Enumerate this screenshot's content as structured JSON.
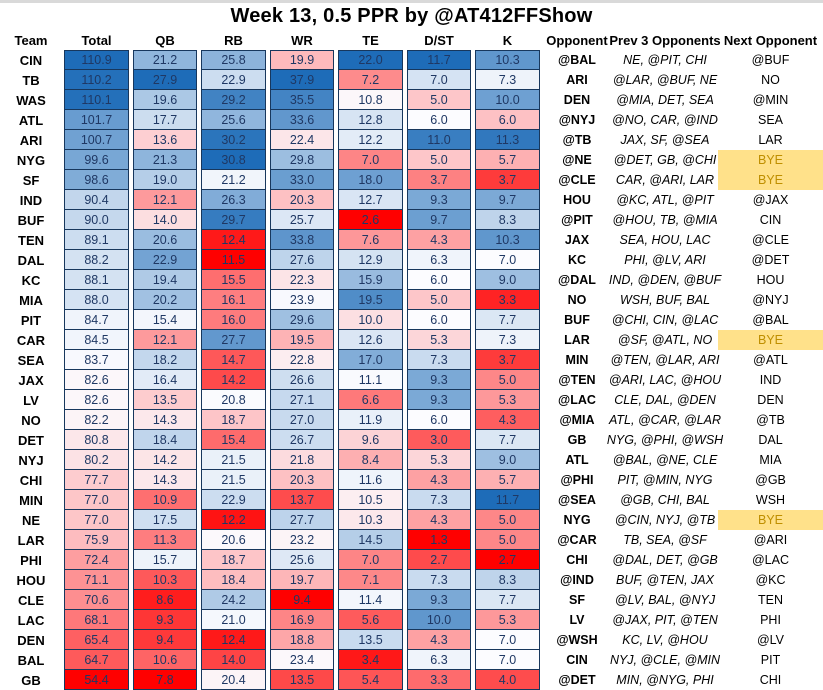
{
  "chart_data": {
    "type": "table",
    "subtype": "heatmap",
    "title": "Week 13, 0.5 PPR by @AT412FFShow",
    "columns": [
      "Team",
      "Total",
      "QB",
      "RB",
      "WR",
      "TE",
      "D/ST",
      "K",
      "Opponent",
      "Prev 3 Opponents",
      "Next Opponent"
    ],
    "numeric_columns": [
      "Total",
      "QB",
      "RB",
      "WR",
      "TE",
      "D/ST",
      "K"
    ],
    "color_scale": {
      "low": "#ff0000",
      "mid": "#fcfcff",
      "high": "#1e6cb8",
      "midpoint": "median-per-column",
      "cell_text": "#1f3864",
      "grid_line": "#17375d",
      "bye_bg": "#ffe18a",
      "bye_text": "#bf8f00"
    },
    "rows": [
      {
        "team": "CIN",
        "vals": [
          110.9,
          21.2,
          25.8,
          19.9,
          22.0,
          11.7,
          10.3
        ],
        "opp": "@BAL",
        "prev3": "NE, @PIT, CHI",
        "next": "@BUF",
        "next_bye": false
      },
      {
        "team": "TB",
        "vals": [
          110.2,
          27.9,
          22.9,
          37.9,
          7.2,
          7.0,
          7.3
        ],
        "opp": "ARI",
        "prev3": "@LAR, @BUF, NE",
        "next": "NO",
        "next_bye": false
      },
      {
        "team": "WAS",
        "vals": [
          110.1,
          19.6,
          29.2,
          35.5,
          10.8,
          5.0,
          10.0
        ],
        "opp": "DEN",
        "prev3": "@MIA, DET, SEA",
        "next": "@MIN",
        "next_bye": false
      },
      {
        "team": "ATL",
        "vals": [
          101.7,
          17.7,
          25.6,
          33.6,
          12.8,
          6.0,
          6.0
        ],
        "opp": "@NYJ",
        "prev3": "@NO, CAR, @IND",
        "next": "SEA",
        "next_bye": false
      },
      {
        "team": "ARI",
        "vals": [
          100.7,
          13.6,
          30.2,
          22.4,
          12.2,
          11.0,
          11.3
        ],
        "opp": "@TB",
        "prev3": "JAX, SF, @SEA",
        "next": "LAR",
        "next_bye": false
      },
      {
        "team": "NYG",
        "vals": [
          99.6,
          21.3,
          30.8,
          29.8,
          7.0,
          5.0,
          5.7
        ],
        "opp": "@NE",
        "prev3": "@DET, GB, @CHI",
        "next": "BYE",
        "next_bye": true
      },
      {
        "team": "SF",
        "vals": [
          98.6,
          19.0,
          21.2,
          33.0,
          18.0,
          3.7,
          3.7
        ],
        "opp": "@CLE",
        "prev3": "CAR, @ARI, LAR",
        "next": "BYE",
        "next_bye": true
      },
      {
        "team": "IND",
        "vals": [
          90.4,
          12.1,
          26.3,
          20.3,
          12.7,
          9.3,
          9.7
        ],
        "opp": "HOU",
        "prev3": "@KC, ATL, @PIT",
        "next": "@JAX",
        "next_bye": false
      },
      {
        "team": "BUF",
        "vals": [
          90.0,
          14.0,
          29.7,
          25.7,
          2.6,
          9.7,
          8.3
        ],
        "opp": "@PIT",
        "prev3": "@HOU, TB, @MIA",
        "next": "CIN",
        "next_bye": false
      },
      {
        "team": "TEN",
        "vals": [
          89.1,
          20.6,
          12.4,
          33.8,
          7.6,
          4.3,
          10.3
        ],
        "opp": "JAX",
        "prev3": "SEA, HOU, LAC",
        "next": "@CLE",
        "next_bye": false
      },
      {
        "team": "DAL",
        "vals": [
          88.2,
          22.9,
          11.5,
          27.6,
          12.9,
          6.3,
          7.0
        ],
        "opp": "KC",
        "prev3": "PHI, @LV, ARI",
        "next": "@DET",
        "next_bye": false
      },
      {
        "team": "KC",
        "vals": [
          88.1,
          19.4,
          15.5,
          22.3,
          15.9,
          6.0,
          9.0
        ],
        "opp": "@DAL",
        "prev3": "IND, @DEN, @BUF",
        "next": "HOU",
        "next_bye": false
      },
      {
        "team": "MIA",
        "vals": [
          88.0,
          20.2,
          16.1,
          23.9,
          19.5,
          5.0,
          3.3
        ],
        "opp": "NO",
        "prev3": "WSH, BUF, BAL",
        "next": "@NYJ",
        "next_bye": false
      },
      {
        "team": "PIT",
        "vals": [
          84.7,
          15.4,
          16.0,
          29.6,
          10.0,
          6.0,
          7.7
        ],
        "opp": "BUF",
        "prev3": "@CHI, CIN, @LAC",
        "next": "@BAL",
        "next_bye": false
      },
      {
        "team": "CAR",
        "vals": [
          84.5,
          12.1,
          27.7,
          19.5,
          12.6,
          5.3,
          7.3
        ],
        "opp": "LAR",
        "prev3": "@SF, @ATL, NO",
        "next": "BYE",
        "next_bye": true
      },
      {
        "team": "SEA",
        "vals": [
          83.7,
          18.2,
          14.7,
          22.8,
          17.0,
          7.3,
          3.7
        ],
        "opp": "MIN",
        "prev3": "@TEN, @LAR, ARI",
        "next": "@ATL",
        "next_bye": false
      },
      {
        "team": "JAX",
        "vals": [
          82.6,
          16.4,
          14.2,
          26.6,
          11.1,
          9.3,
          5.0
        ],
        "opp": "@TEN",
        "prev3": "@ARI, LAC, @HOU",
        "next": "IND",
        "next_bye": false
      },
      {
        "team": "LV",
        "vals": [
          82.6,
          13.5,
          20.8,
          27.1,
          6.6,
          9.3,
          5.3
        ],
        "opp": "@LAC",
        "prev3": "CLE, DAL, @DEN",
        "next": "DEN",
        "next_bye": false
      },
      {
        "team": "NO",
        "vals": [
          82.2,
          14.3,
          18.7,
          27.0,
          11.9,
          6.0,
          4.3
        ],
        "opp": "@MIA",
        "prev3": "ATL, @CAR, @LAR",
        "next": "@TB",
        "next_bye": false
      },
      {
        "team": "DET",
        "vals": [
          80.8,
          18.4,
          15.4,
          26.7,
          9.6,
          3.0,
          7.7
        ],
        "opp": "GB",
        "prev3": "NYG, @PHI, @WSH",
        "next": "DAL",
        "next_bye": false
      },
      {
        "team": "NYJ",
        "vals": [
          80.2,
          14.2,
          21.5,
          21.8,
          8.4,
          5.3,
          9.0
        ],
        "opp": "ATL",
        "prev3": "@BAL, @NE, CLE",
        "next": "MIA",
        "next_bye": false
      },
      {
        "team": "CHI",
        "vals": [
          77.7,
          14.3,
          21.5,
          20.3,
          11.6,
          4.3,
          5.7
        ],
        "opp": "@PHI",
        "prev3": "PIT, @MIN, NYG",
        "next": "@GB",
        "next_bye": false
      },
      {
        "team": "MIN",
        "vals": [
          77.0,
          10.9,
          22.9,
          13.7,
          10.5,
          7.3,
          11.7
        ],
        "opp": "@SEA",
        "prev3": "@GB, CHI, BAL",
        "next": "WSH",
        "next_bye": false
      },
      {
        "team": "NE",
        "vals": [
          77.0,
          17.5,
          12.2,
          27.7,
          10.3,
          4.3,
          5.0
        ],
        "opp": "NYG",
        "prev3": "@CIN, NYJ, @TB",
        "next": "BYE",
        "next_bye": true
      },
      {
        "team": "LAR",
        "vals": [
          75.9,
          11.3,
          20.6,
          23.2,
          14.5,
          1.3,
          5.0
        ],
        "opp": "@CAR",
        "prev3": "TB, SEA, @SF",
        "next": "@ARI",
        "next_bye": false
      },
      {
        "team": "PHI",
        "vals": [
          72.4,
          15.7,
          18.7,
          25.6,
          7.0,
          2.7,
          2.7
        ],
        "opp": "CHI",
        "prev3": "@DAL, DET, @GB",
        "next": "@LAC",
        "next_bye": false
      },
      {
        "team": "HOU",
        "vals": [
          71.1,
          10.3,
          18.4,
          19.7,
          7.1,
          7.3,
          8.3
        ],
        "opp": "@IND",
        "prev3": "BUF, @TEN, JAX",
        "next": "@KC",
        "next_bye": false
      },
      {
        "team": "CLE",
        "vals": [
          70.6,
          8.6,
          24.2,
          9.4,
          11.4,
          9.3,
          7.7
        ],
        "opp": "SF",
        "prev3": "@LV, BAL, @NYJ",
        "next": "TEN",
        "next_bye": false
      },
      {
        "team": "LAC",
        "vals": [
          68.1,
          9.3,
          21.0,
          16.9,
          5.6,
          10.0,
          5.3
        ],
        "opp": "LV",
        "prev3": "@JAX, PIT, @TEN",
        "next": "PHI",
        "next_bye": false
      },
      {
        "team": "DEN",
        "vals": [
          65.4,
          9.4,
          12.4,
          18.8,
          13.5,
          4.3,
          7.0
        ],
        "opp": "@WSH",
        "prev3": "KC, LV, @HOU",
        "next": "@LV",
        "next_bye": false
      },
      {
        "team": "BAL",
        "vals": [
          64.7,
          10.6,
          14.0,
          23.4,
          3.4,
          6.3,
          7.0
        ],
        "opp": "CIN",
        "prev3": "NYJ, @CLE, @MIN",
        "next": "PIT",
        "next_bye": false
      },
      {
        "team": "GB",
        "vals": [
          54.4,
          7.8,
          20.4,
          13.5,
          5.4,
          3.3,
          4.0
        ],
        "opp": "@DET",
        "prev3": "MIN, @NYG, PHI",
        "next": "CHI",
        "next_bye": false
      }
    ]
  }
}
